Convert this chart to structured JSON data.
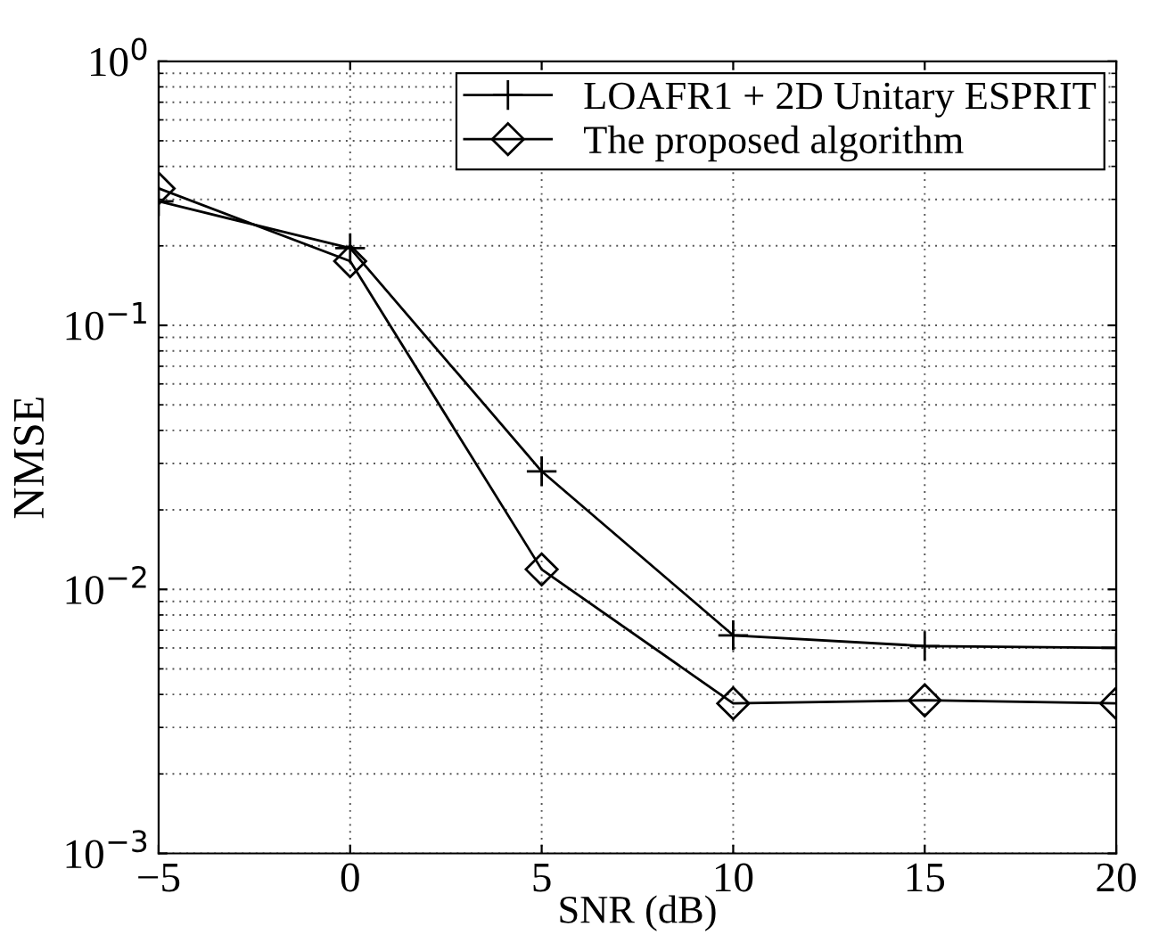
{
  "chart_data": {
    "type": "line",
    "xlabel": "SNR (dB)",
    "ylabel": "NMSE",
    "log": "y",
    "grid": true,
    "legend": "top right",
    "x": [
      -5,
      0,
      5,
      10,
      15,
      20
    ],
    "xlim": [
      -5,
      20
    ],
    "xticks": [
      {
        "value": -5,
        "label": "−5"
      },
      0,
      5,
      10,
      15,
      20
    ],
    "ylim": [
      0.001,
      1
    ],
    "yticks": [
      {
        "value": 0.001,
        "label": "10$^{−3}$"
      },
      {
        "value": 0.01,
        "label": "10$^{−2}$"
      },
      {
        "value": 0.1,
        "label": "10$^{−1}$"
      },
      {
        "value": 1,
        "label": "10$^{0}$"
      }
    ],
    "series": [
      {
        "name": "LOAFR1 + 2D Unitary ESPRIT",
        "color": "#000000",
        "marker": "cross",
        "values": [
          0.295,
          0.196,
          0.028,
          0.0067,
          0.0061,
          0.006
        ]
      },
      {
        "name": "The proposed algorithm",
        "color": "#000000",
        "marker": "diamond",
        "values": [
          0.33,
          0.175,
          0.0119,
          0.0037,
          0.0038,
          0.0037
        ]
      }
    ]
  }
}
